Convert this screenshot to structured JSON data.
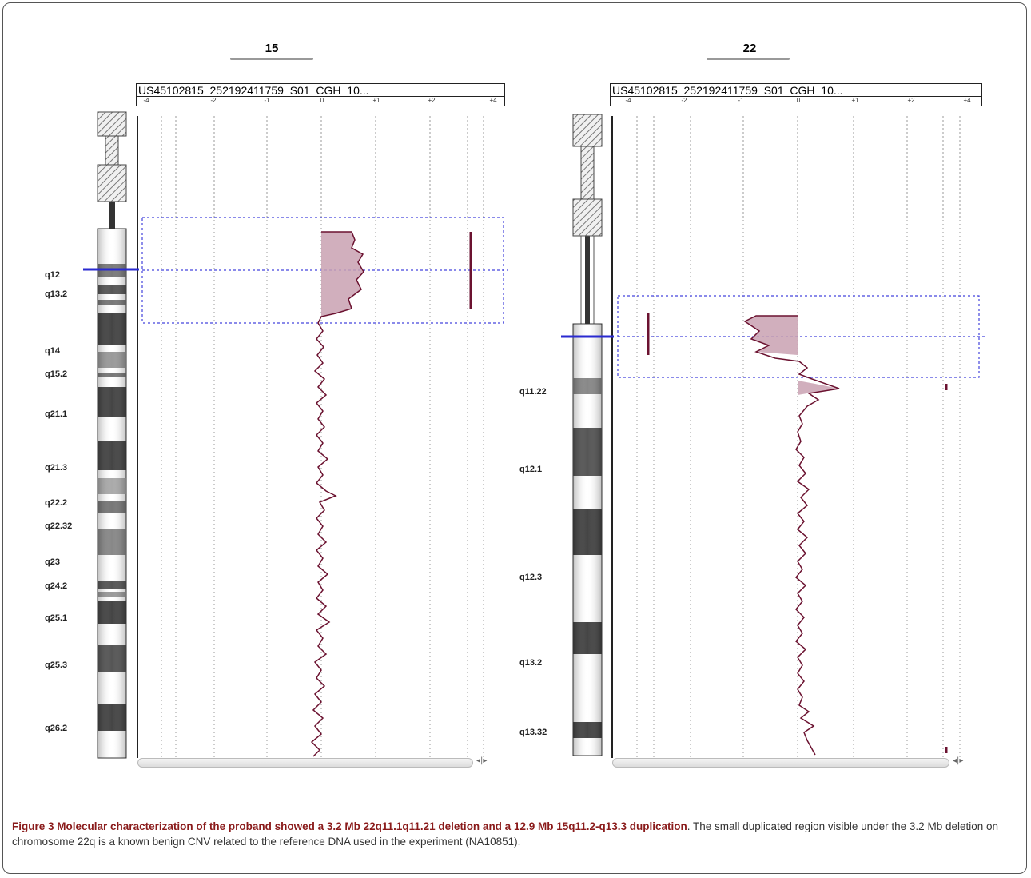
{
  "panels": [
    {
      "chromosome": "15",
      "sample": "US45102815_252192411759_S01_CGH_10...",
      "ticks": [
        "-4",
        "-2",
        "-1",
        "0",
        "+1",
        "+2",
        "+4"
      ],
      "bands": [
        "q12",
        "q13.2",
        "q14",
        "q15.2",
        "q21.1",
        "q21.3",
        "q22.2",
        "q22.32",
        "q23",
        "q24.2",
        "q25.1",
        "q25.3",
        "q26.2"
      ]
    },
    {
      "chromosome": "22",
      "sample": "US45102815_252192411759_S01_CGH_10...",
      "ticks": [
        "-4",
        "-2",
        "-1",
        "0",
        "+1",
        "+2",
        "+4"
      ],
      "bands": [
        "q11.22",
        "q12.1",
        "q12.3",
        "q13.2",
        "q13.32"
      ]
    }
  ],
  "caption": {
    "label": "Figure 3",
    "title": "Molecular characterization of the proband showed a 3.2 Mb 22q11.1q11.21 deletion and a 12.9 Mb 15q11.2-q13.3 duplication",
    "text": ". The small duplicated region visible under the 3.2 Mb deletion on chromosome 22q is a known benign CNV related to the reference DNA used in the experiment (NA10851)."
  },
  "colors": {
    "trace": "#6b1230",
    "fill": "#c9a1b1",
    "selection": "#4444dd",
    "marker": "#2a2ad0"
  }
}
